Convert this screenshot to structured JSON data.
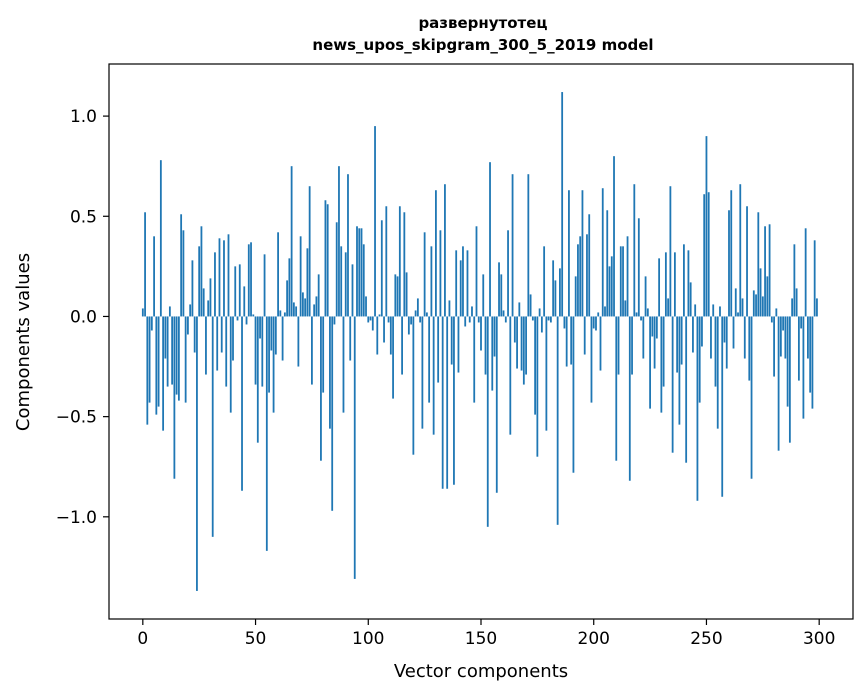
{
  "chart_data": {
    "type": "bar",
    "title_lines": [
      "развернутотец",
      "news_upos_skipgram_300_5_2019 model"
    ],
    "xlabel": "Vector components",
    "ylabel": "Components values",
    "xlim": [
      -15,
      315
    ],
    "ylim": [
      -1.51,
      1.26
    ],
    "x_ticks": [
      0,
      50,
      100,
      150,
      200,
      250,
      300
    ],
    "x_tick_labels": [
      "0",
      "50",
      "100",
      "150",
      "200",
      "250",
      "300"
    ],
    "y_ticks": [
      -1.0,
      -0.5,
      0.0,
      0.5,
      1.0
    ],
    "y_tick_labels": [
      "−1.0",
      "−0.5",
      "0.0",
      "0.5",
      "1.0"
    ],
    "bar_color": "#1f77b4",
    "x_start": 0,
    "values": [
      0.04,
      0.52,
      -0.54,
      -0.43,
      -0.07,
      0.4,
      -0.49,
      -0.45,
      0.78,
      -0.57,
      -0.21,
      -0.35,
      0.05,
      -0.34,
      -0.81,
      -0.39,
      -0.42,
      0.51,
      0.43,
      -0.43,
      -0.09,
      0.06,
      0.28,
      -0.18,
      -1.37,
      0.35,
      0.45,
      0.14,
      -0.29,
      0.08,
      0.19,
      -1.1,
      0.32,
      -0.27,
      0.39,
      -0.18,
      0.38,
      -0.35,
      0.41,
      -0.48,
      -0.22,
      0.25,
      -0.02,
      0.26,
      -0.87,
      0.15,
      -0.04,
      0.36,
      0.37,
      0.01,
      -0.34,
      -0.63,
      -0.11,
      -0.35,
      0.31,
      -1.17,
      -0.38,
      -0.17,
      -0.48,
      -0.19,
      0.42,
      0.03,
      -0.22,
      0.02,
      0.18,
      0.29,
      0.75,
      0.07,
      0.05,
      -0.25,
      0.4,
      0.12,
      0.09,
      0.34,
      0.65,
      -0.34,
      0.06,
      0.1,
      0.21,
      -0.72,
      -0.38,
      0.58,
      0.56,
      -0.56,
      -0.97,
      -0.04,
      0.47,
      0.75,
      0.35,
      -0.48,
      0.32,
      0.71,
      -0.22,
      0.26,
      -1.31,
      0.45,
      0.44,
      0.44,
      0.36,
      0.1,
      -0.03,
      -0.02,
      -0.07,
      0.95,
      -0.19,
      0.01,
      0.48,
      -0.13,
      0.55,
      -0.03,
      -0.19,
      -0.41,
      0.21,
      0.2,
      0.55,
      -0.29,
      0.52,
      0.22,
      -0.09,
      -0.04,
      -0.69,
      0.03,
      0.09,
      -0.03,
      -0.56,
      0.42,
      0.02,
      -0.43,
      0.35,
      -0.59,
      0.63,
      -0.33,
      0.43,
      -0.86,
      0.66,
      -0.86,
      0.08,
      -0.24,
      -0.84,
      0.33,
      -0.28,
      0.28,
      0.35,
      -0.05,
      0.33,
      -0.03,
      0.05,
      -0.43,
      0.45,
      -0.03,
      -0.17,
      0.21,
      -0.29,
      -1.05,
      0.77,
      -0.37,
      -0.2,
      -0.88,
      0.27,
      0.21,
      0.03,
      -0.03,
      0.43,
      -0.59,
      0.71,
      -0.13,
      -0.26,
      0.07,
      -0.27,
      -0.34,
      -0.29,
      0.71,
      0.11,
      -0.02,
      -0.49,
      -0.7,
      0.04,
      -0.08,
      0.35,
      -0.57,
      -0.02,
      -0.03,
      0.28,
      0.18,
      -1.04,
      0.24,
      1.12,
      -0.06,
      -0.25,
      0.63,
      -0.24,
      -0.78,
      0.2,
      0.36,
      0.4,
      0.63,
      -0.19,
      0.41,
      0.51,
      -0.43,
      -0.06,
      -0.07,
      0.02,
      -0.27,
      0.64,
      0.05,
      0.53,
      0.25,
      0.3,
      0.8,
      -0.72,
      -0.29,
      0.35,
      0.35,
      0.08,
      0.4,
      -0.82,
      -0.29,
      0.66,
      0.02,
      0.49,
      -0.02,
      -0.21,
      0.2,
      0.04,
      -0.46,
      -0.1,
      -0.26,
      -0.11,
      0.29,
      -0.48,
      -0.35,
      0.32,
      0.09,
      0.65,
      -0.68,
      0.32,
      -0.28,
      -0.54,
      -0.24,
      0.36,
      -0.73,
      0.33,
      0.17,
      -0.18,
      0.06,
      -0.92,
      -0.43,
      -0.15,
      0.61,
      0.9,
      0.62,
      -0.21,
      0.06,
      -0.35,
      -0.56,
      0.05,
      -0.9,
      -0.13,
      -0.26,
      0.53,
      0.63,
      -0.16,
      0.14,
      0.02,
      0.66,
      0.09,
      -0.21,
      0.55,
      -0.32,
      -0.81,
      0.13,
      0.11,
      0.52,
      0.24,
      0.1,
      0.45,
      0.2,
      0.46,
      -0.03,
      -0.3,
      0.04,
      -0.67,
      -0.2,
      -0.07,
      -0.21,
      -0.45,
      -0.63,
      0.09,
      0.36,
      0.14,
      -0.32,
      -0.06,
      -0.51,
      0.44,
      -0.21,
      -0.38,
      -0.46,
      0.38,
      0.09
    ]
  }
}
